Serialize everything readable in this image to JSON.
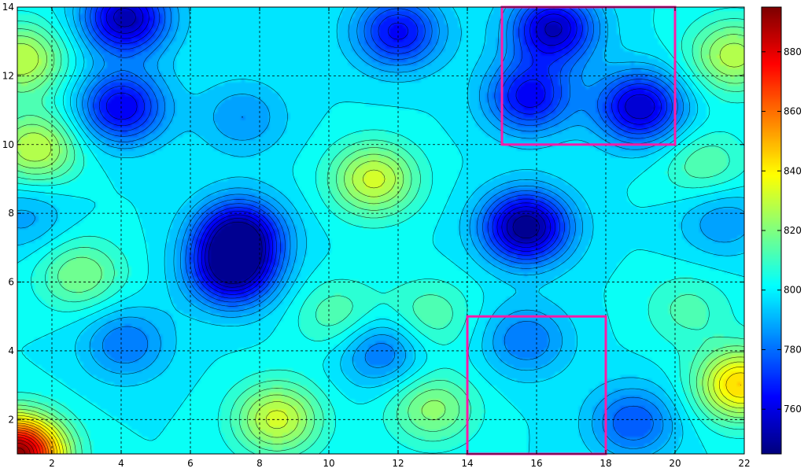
{
  "chart_data": {
    "type": "heatmap",
    "subtype": "filled-contour",
    "title": "",
    "xlabel": "",
    "ylabel": "",
    "xlim": [
      1,
      22
    ],
    "ylim": [
      1,
      14
    ],
    "x_ticks": [
      2,
      4,
      6,
      8,
      10,
      12,
      14,
      16,
      18,
      20,
      22
    ],
    "y_ticks": [
      2,
      4,
      6,
      8,
      10,
      12,
      14
    ],
    "grid": true,
    "grid_style": "dashed-black",
    "colormap": "jet",
    "colorbar": {
      "range": [
        745,
        895
      ],
      "ticks": [
        760,
        780,
        800,
        820,
        840,
        860,
        880
      ],
      "placement": "right"
    },
    "surface_features": [
      {
        "x": 15.7,
        "y": 7.6,
        "value": 745,
        "kind": "minimum"
      },
      {
        "x": 7.4,
        "y": 7.4,
        "value": 752,
        "kind": "minimum"
      },
      {
        "x": 7.2,
        "y": 6.3,
        "value": 752,
        "kind": "minimum"
      },
      {
        "x": 4.1,
        "y": 13.7,
        "value": 752,
        "kind": "minimum"
      },
      {
        "x": 16.5,
        "y": 13.4,
        "value": 754,
        "kind": "minimum"
      },
      {
        "x": 19.0,
        "y": 11.1,
        "value": 755,
        "kind": "minimum"
      },
      {
        "x": 4.0,
        "y": 11.1,
        "value": 760,
        "kind": "minimum"
      },
      {
        "x": 15.8,
        "y": 11.4,
        "value": 762,
        "kind": "minimum"
      },
      {
        "x": 12.0,
        "y": 13.3,
        "value": 763,
        "kind": "minimum"
      },
      {
        "x": 18.8,
        "y": 1.9,
        "value": 775,
        "kind": "minimum"
      },
      {
        "x": 11.5,
        "y": 4.0,
        "value": 778,
        "kind": "minimum"
      },
      {
        "x": 4.1,
        "y": 4.2,
        "value": 780,
        "kind": "minimum"
      },
      {
        "x": 15.7,
        "y": 4.3,
        "value": 780,
        "kind": "minimum"
      },
      {
        "x": 7.5,
        "y": 10.8,
        "value": 785,
        "kind": "minimum"
      },
      {
        "x": 21.4,
        "y": 7.8,
        "value": 785,
        "kind": "minimum"
      },
      {
        "x": 1.2,
        "y": 7.9,
        "value": 788,
        "kind": "minimum"
      },
      {
        "x": 11.3,
        "y": 9.0,
        "value": 832,
        "kind": "maximum"
      },
      {
        "x": 1.5,
        "y": 9.9,
        "value": 830,
        "kind": "maximum"
      },
      {
        "x": 1.1,
        "y": 12.5,
        "value": 830,
        "kind": "maximum"
      },
      {
        "x": 21.7,
        "y": 12.6,
        "value": 828,
        "kind": "maximum"
      },
      {
        "x": 2.8,
        "y": 6.2,
        "value": 820,
        "kind": "maximum"
      },
      {
        "x": 20.9,
        "y": 9.4,
        "value": 815,
        "kind": "maximum"
      },
      {
        "x": 10.3,
        "y": 5.0,
        "value": 815,
        "kind": "maximum"
      },
      {
        "x": 12.9,
        "y": 5.0,
        "value": 815,
        "kind": "maximum"
      },
      {
        "x": 20.4,
        "y": 5.2,
        "value": 812,
        "kind": "maximum"
      },
      {
        "x": 13.0,
        "y": 2.3,
        "value": 822,
        "kind": "maximum"
      },
      {
        "x": 8.5,
        "y": 2.0,
        "value": 832,
        "kind": "maximum"
      },
      {
        "x": 21.9,
        "y": 3.0,
        "value": 845,
        "kind": "maximum"
      },
      {
        "x": 1.0,
        "y": 1.0,
        "value": 893,
        "kind": "maximum"
      }
    ],
    "highlight_regions": [
      {
        "x": [
          15,
          20
        ],
        "y": [
          10,
          14
        ],
        "color": "#ff1aa8"
      },
      {
        "x": [
          14,
          18
        ],
        "y": [
          1,
          5
        ],
        "color": "#ff1aa8"
      }
    ]
  }
}
